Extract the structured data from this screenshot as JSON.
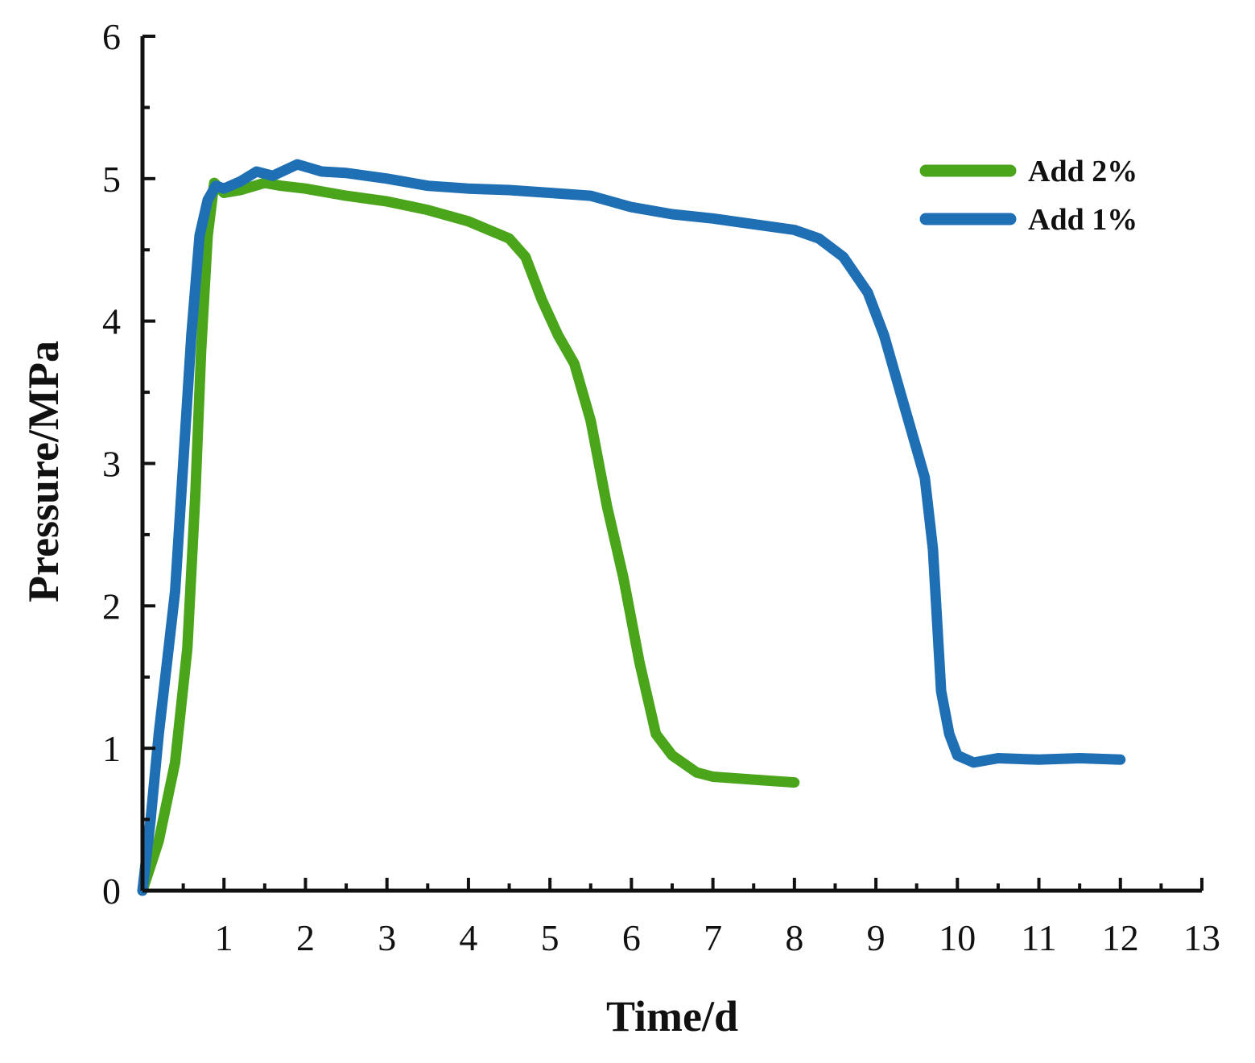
{
  "chart_data": {
    "type": "line",
    "xlabel": "Time/d",
    "ylabel": "Pressure/MPa",
    "xlim": [
      0,
      13
    ],
    "ylim": [
      0,
      6
    ],
    "xticks": [
      "1",
      "2",
      "3",
      "4",
      "5",
      "6",
      "7",
      "8",
      "9",
      "10",
      "11",
      "12",
      "13"
    ],
    "yticks": [
      "0",
      "1",
      "2",
      "3",
      "4",
      "5",
      "6"
    ],
    "grid": false,
    "legend_position": "top-right",
    "series": [
      {
        "name": "Add 2%",
        "color": "#4aa51b",
        "x": [
          0,
          0.2,
          0.4,
          0.55,
          0.65,
          0.72,
          0.8,
          0.88,
          1.0,
          1.2,
          1.5,
          1.7,
          2.0,
          2.5,
          3.0,
          3.5,
          4.0,
          4.5,
          4.7,
          4.9,
          5.1,
          5.3,
          5.5,
          5.7,
          5.9,
          6.1,
          6.3,
          6.5,
          6.8,
          7.0,
          7.5,
          8.0
        ],
        "y": [
          0,
          0.35,
          0.9,
          1.7,
          2.8,
          3.8,
          4.6,
          4.97,
          4.9,
          4.92,
          4.97,
          4.95,
          4.93,
          4.88,
          4.84,
          4.78,
          4.7,
          4.58,
          4.45,
          4.15,
          3.9,
          3.7,
          3.3,
          2.7,
          2.2,
          1.6,
          1.1,
          0.95,
          0.83,
          0.8,
          0.78,
          0.76
        ]
      },
      {
        "name": "Add 1%",
        "color": "#1f6fb5",
        "x": [
          0,
          0.1,
          0.2,
          0.3,
          0.4,
          0.5,
          0.6,
          0.7,
          0.8,
          0.9,
          1.0,
          1.2,
          1.4,
          1.6,
          1.9,
          2.2,
          2.5,
          3.0,
          3.5,
          4.0,
          4.5,
          5.0,
          5.5,
          6.0,
          6.5,
          7.0,
          7.5,
          8.0,
          8.3,
          8.6,
          8.9,
          9.1,
          9.3,
          9.5,
          9.6,
          9.7,
          9.75,
          9.8,
          9.9,
          10.0,
          10.2,
          10.5,
          11.0,
          11.5,
          12.0
        ],
        "y": [
          0,
          0.5,
          1.1,
          1.6,
          2.1,
          3.0,
          3.9,
          4.6,
          4.85,
          4.95,
          4.93,
          4.98,
          5.05,
          5.02,
          5.1,
          5.05,
          5.04,
          5.0,
          4.95,
          4.93,
          4.92,
          4.9,
          4.88,
          4.8,
          4.75,
          4.72,
          4.68,
          4.64,
          4.58,
          4.45,
          4.2,
          3.9,
          3.5,
          3.1,
          2.9,
          2.4,
          1.9,
          1.4,
          1.1,
          0.95,
          0.9,
          0.93,
          0.92,
          0.93,
          0.92
        ]
      }
    ]
  }
}
